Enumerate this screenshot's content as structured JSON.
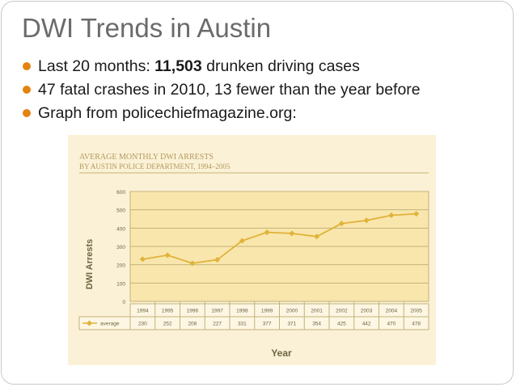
{
  "slide": {
    "title": "DWI Trends in Austin",
    "bullets": [
      {
        "pre": "Last 20 months: ",
        "bold": "11,503",
        "post": " drunken driving cases"
      },
      {
        "pre": "47 fatal crashes in 2010, 13 fewer than the year before",
        "bold": "",
        "post": ""
      },
      {
        "pre": "Graph from policechiefmagazine.org:",
        "bold": "",
        "post": ""
      }
    ]
  },
  "colors": {
    "bullet": "#e48312",
    "line": "#e0b33a",
    "panel": "#fbf1d7",
    "plot": "#f9e6ad",
    "gridline": "#c4b277"
  },
  "chart_data": {
    "type": "line",
    "title": "AVERAGE MONTHLY DWI ARRESTS",
    "subtitle": "BY AUSTIN POLICE DEPARTMENT, 1994–2005",
    "xlabel": "Year",
    "ylabel": "DWI Arrests",
    "ylim": [
      0,
      600
    ],
    "yticks": [
      0,
      100,
      200,
      300,
      400,
      500,
      600
    ],
    "grid": true,
    "categories": [
      "1994",
      "1995",
      "1996",
      "1997",
      "1998",
      "1999",
      "2000",
      "2001",
      "2002",
      "2003",
      "2004",
      "2005"
    ],
    "series": [
      {
        "name": "average",
        "values": [
          230,
          252,
          208,
          227,
          331,
          377,
          371,
          354,
          425,
          442,
          470,
          478
        ]
      }
    ]
  }
}
